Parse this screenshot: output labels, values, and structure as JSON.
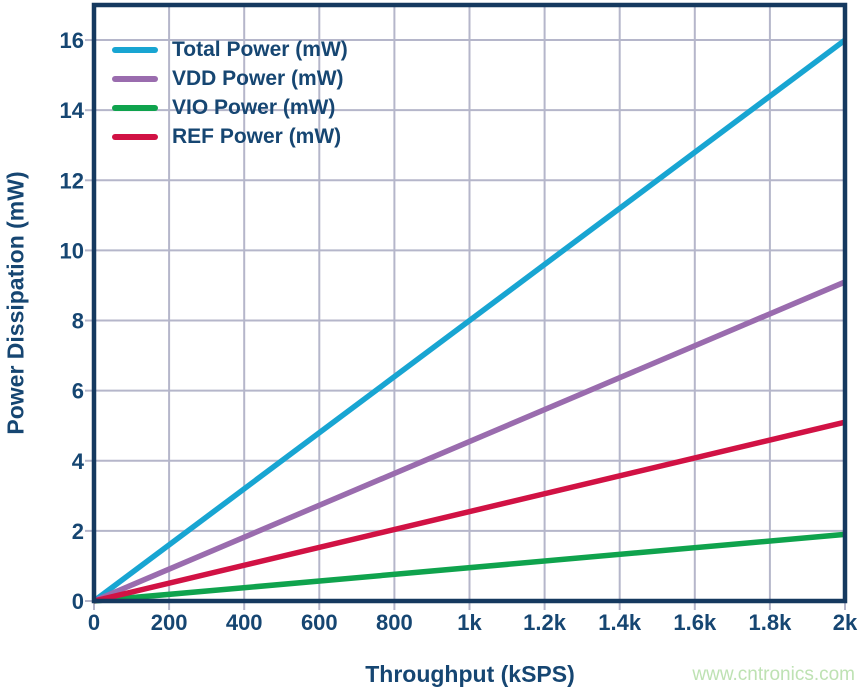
{
  "figure": {
    "watermark": "www.cntronics.com"
  },
  "chart_data": {
    "type": "line",
    "title": "",
    "xlabel": "Throughput (kSPS)",
    "ylabel": "Power Dissipation (mW)",
    "xlim": [
      0,
      2000
    ],
    "ylim": [
      0,
      17
    ],
    "grid": "on",
    "legend_position": "top-left",
    "x_ticks": [
      {
        "value": 0,
        "label": "0"
      },
      {
        "value": 200,
        "label": "200"
      },
      {
        "value": 400,
        "label": "400"
      },
      {
        "value": 600,
        "label": "600"
      },
      {
        "value": 800,
        "label": "800"
      },
      {
        "value": 1000,
        "label": "1k"
      },
      {
        "value": 1200,
        "label": "1.2k"
      },
      {
        "value": 1400,
        "label": "1.4k"
      },
      {
        "value": 1600,
        "label": "1.6k"
      },
      {
        "value": 1800,
        "label": "1.8k"
      },
      {
        "value": 2000,
        "label": "2k"
      }
    ],
    "y_ticks": [
      {
        "value": 0,
        "label": "0"
      },
      {
        "value": 2,
        "label": "2"
      },
      {
        "value": 4,
        "label": "4"
      },
      {
        "value": 6,
        "label": "6"
      },
      {
        "value": 8,
        "label": "8"
      },
      {
        "value": 10,
        "label": "10"
      },
      {
        "value": 12,
        "label": "12"
      },
      {
        "value": 14,
        "label": "14"
      },
      {
        "value": 16,
        "label": "16"
      }
    ],
    "series": [
      {
        "id": "total-power",
        "name": "Total Power (mW)",
        "color": "#18a5d2",
        "x": [
          0,
          2000
        ],
        "y": [
          0,
          16
        ]
      },
      {
        "id": "vdd-power",
        "name": "VDD Power (mW)",
        "color": "#9a6cae",
        "x": [
          0,
          2000
        ],
        "y": [
          0,
          9.1
        ]
      },
      {
        "id": "vio-power",
        "name": "VIO Power (mW)",
        "color": "#0fa34d",
        "x": [
          0,
          2000
        ],
        "y": [
          0,
          1.9
        ]
      },
      {
        "id": "ref-power",
        "name": "REF Power (mW)",
        "color": "#d11244",
        "x": [
          0,
          2000
        ],
        "y": [
          0,
          5.1
        ]
      }
    ],
    "colors": {
      "frame": "#15395f",
      "text": "#164672",
      "grid": "#b5b6ca",
      "watermark": "#bee2b3",
      "background": "#ffffff"
    }
  }
}
